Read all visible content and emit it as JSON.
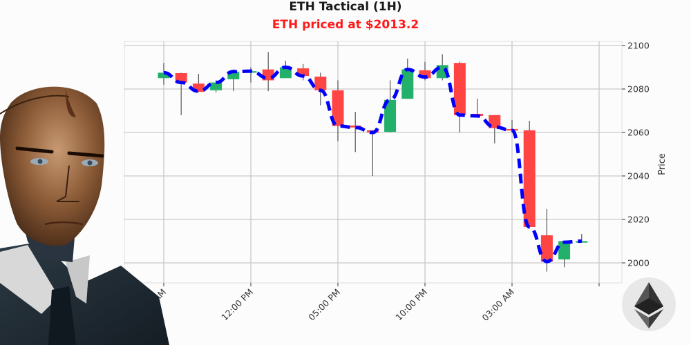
{
  "header": {
    "title": "ETH Tactical (1H)",
    "subtitle": "ETH priced at $2013.2"
  },
  "colors": {
    "up": "#22b06a",
    "down": "#ff4444",
    "ma_line": "#0000ff",
    "title": "#1a1a1a",
    "subtitle": "#ff1a1a",
    "grid": "#c8c8c8"
  },
  "icons": {
    "avatar": "ai-trader-portrait",
    "logo": "ethereum-logo-icon"
  },
  "chart_data": {
    "type": "candlestick",
    "title": "ETH Tactical (1H)",
    "subtitle": "ETH priced at $2013.2",
    "xlabel": "",
    "ylabel": "Price",
    "ylim": [
      1995,
      2102
    ],
    "yticks": [
      2000,
      2020,
      2040,
      2060,
      2080,
      2100
    ],
    "xtick_labels": [
      "07:00 AM",
      "12:00 PM",
      "05:00 PM",
      "10:00 PM",
      "03:00 AM",
      ""
    ],
    "xtick_candle_index": [
      0,
      5,
      10,
      15,
      20,
      25
    ],
    "grid": true,
    "y_axis_position": "right",
    "candles": [
      {
        "o": 2085.0,
        "h": 2092.0,
        "l": 2082.0,
        "c": 2087.5
      },
      {
        "o": 2087.3,
        "h": 2087.5,
        "l": 2068.0,
        "c": 2083.0
      },
      {
        "o": 2082.5,
        "h": 2087.0,
        "l": 2078.5,
        "c": 2078.7
      },
      {
        "o": 2079.4,
        "h": 2084.0,
        "l": 2078.5,
        "c": 2083.0
      },
      {
        "o": 2084.5,
        "h": 2089.0,
        "l": 2079.0,
        "c": 2088.0
      },
      {
        "o": 2088.0,
        "h": 2090.0,
        "l": 2083.0,
        "c": 2088.2
      },
      {
        "o": 2089.0,
        "h": 2097.0,
        "l": 2079.0,
        "c": 2084.0
      },
      {
        "o": 2085.0,
        "h": 2093.0,
        "l": 2085.0,
        "c": 2090.0
      },
      {
        "o": 2089.5,
        "h": 2091.5,
        "l": 2084.0,
        "c": 2086.0
      },
      {
        "o": 2085.7,
        "h": 2087.5,
        "l": 2072.5,
        "c": 2079.4
      },
      {
        "o": 2079.4,
        "h": 2084.0,
        "l": 2056.0,
        "c": 2063.0
      },
      {
        "o": 2063.2,
        "h": 2069.5,
        "l": 2051.0,
        "c": 2062.3
      },
      {
        "o": 2061.0,
        "h": 2061.0,
        "l": 2040.0,
        "c": 2060.0
      },
      {
        "o": 2060.3,
        "h": 2084.0,
        "l": 2060.0,
        "c": 2075.0
      },
      {
        "o": 2075.5,
        "h": 2094.0,
        "l": 2075.5,
        "c": 2089.0
      },
      {
        "o": 2088.6,
        "h": 2092.5,
        "l": 2084.0,
        "c": 2085.0
      },
      {
        "o": 2085.0,
        "h": 2096.0,
        "l": 2084.0,
        "c": 2091.0
      },
      {
        "o": 2092.0,
        "h": 2092.5,
        "l": 2060.0,
        "c": 2068.0
      },
      {
        "o": 2068.6,
        "h": 2075.5,
        "l": 2067.5,
        "c": 2067.6
      },
      {
        "o": 2068.0,
        "h": 2068.0,
        "l": 2055.0,
        "c": 2062.0
      },
      {
        "o": 2061.6,
        "h": 2065.7,
        "l": 2060.5,
        "c": 2061.0
      },
      {
        "o": 2061.0,
        "h": 2065.4,
        "l": 2016.5,
        "c": 2016.5
      },
      {
        "o": 2012.7,
        "h": 2024.8,
        "l": 1996.0,
        "c": 2000.6
      },
      {
        "o": 2001.6,
        "h": 2010.0,
        "l": 1998.0,
        "c": 2010.0
      },
      {
        "o": 2009.5,
        "h": 2013.3,
        "l": 2009.5,
        "c": 2010.0
      }
    ],
    "series": [
      {
        "name": "moving-average",
        "style": "dashed",
        "color": "#0000ff",
        "values": [
          2087.5,
          2083.0,
          2079.0,
          2083.0,
          2088.0,
          2088.2,
          2085.0,
          2090.0,
          2086.0,
          2079.4,
          2063.0,
          2062.3,
          2060.0,
          2075.0,
          2089.0,
          2085.5,
          2090.0,
          2068.0,
          2067.6,
          2062.5,
          2061.0,
          2016.5,
          2000.6,
          2009.5,
          2010.0
        ]
      }
    ]
  }
}
